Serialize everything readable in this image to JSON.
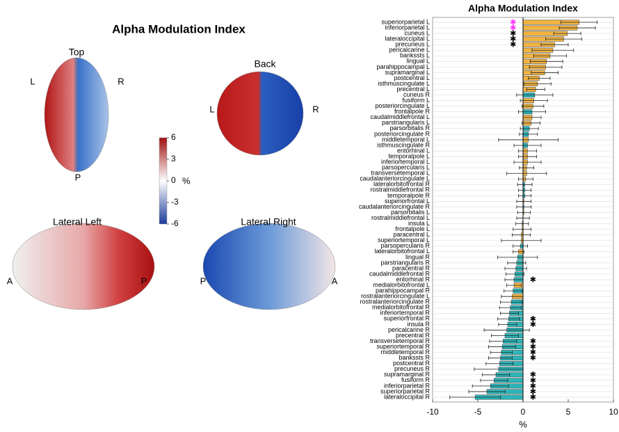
{
  "chart_data": [
    {
      "type": "colorbar",
      "title": "Alpha Modulation Index",
      "label": "%",
      "ylim": [
        -6,
        6
      ],
      "yticks": [
        6,
        3,
        0,
        -3,
        -6
      ],
      "colors": [
        "#1a3a9a",
        "#ffffff",
        "#a01010"
      ],
      "views": [
        {
          "title": "Top",
          "labels": [
            "L",
            "R",
            "P"
          ]
        },
        {
          "title": "Back",
          "labels": [
            "L",
            "R"
          ]
        },
        {
          "title": "Lateral Left",
          "labels": [
            "A",
            "P"
          ]
        },
        {
          "title": "Lateral Right",
          "labels": [
            "P",
            "A"
          ]
        }
      ]
    },
    {
      "type": "hbar",
      "title": "Alpha Modulation Index",
      "xlabel": "%",
      "xlim": [
        -10,
        10
      ],
      "xticks": [
        -10,
        -5,
        0,
        5,
        10
      ],
      "grid": true,
      "categories": [
        "superiorparietal L",
        "inferiorparietal L",
        "cuneus L",
        "lateraloccipital L",
        "precuneus L",
        "pericalcarine L",
        "bankssts L",
        "lingual L",
        "parahippocampal L",
        "supramarginal L",
        "postcentral L",
        "isthmuscingulate L",
        "precentral L",
        "cuneus R",
        "fusiform L",
        "posteriorcingulate L",
        "frontalpole R",
        "caudalmiddlefrontal L",
        "parstriangularis L",
        "parsorbitalis R",
        "posteriorcingulate R",
        "middletemporal L",
        "isthmuscingulate R",
        "entorhinal L",
        "temporalpole L",
        "inferiortemporal L",
        "parsopercularis L",
        "transversetemporal L",
        "caudalanteriorcingulate L",
        "lateralorbitofrontal R",
        "rostralmiddlefrontal R",
        "temporalpole R",
        "superiorfrontal L",
        "caudalanteriorcingulate R",
        "parsorbitalis L",
        "rostralmiddlefrontal L",
        "insula L",
        "frontalpole L",
        "paracentral L",
        "superiortemporal L",
        "parsopercularis R",
        "lateralorbitofrontal L",
        "lingual R",
        "parstriangularis R",
        "paracentral R",
        "caudalmiddlefrontal R",
        "entorhinal R",
        "medialorbitofrontal L",
        "parahippocampal R",
        "rostralanteriorcingulate L",
        "rostralanteriorcingulate R",
        "medialorbitofrontal R",
        "inferiortemporal R",
        "superiorfrontal R",
        "insula R",
        "pericalcarine R",
        "precentral R",
        "transversetemporal R",
        "superiortemporal R",
        "middletemporal R",
        "bankssts R",
        "postcentral R",
        "precuneus R",
        "supramarginal R",
        "fusiform R",
        "inferiorparietal R",
        "superiorparietal R",
        "lateraloccipital R"
      ],
      "values": [
        6.2,
        6.0,
        4.9,
        4.5,
        3.5,
        3.3,
        3.0,
        2.6,
        2.5,
        2.4,
        1.8,
        1.6,
        1.4,
        1.3,
        1.2,
        1.1,
        1.0,
        1.0,
        0.9,
        0.7,
        0.6,
        0.6,
        0.5,
        0.5,
        0.5,
        0.5,
        0.4,
        0.4,
        0.3,
        0.2,
        0.2,
        0.2,
        0.1,
        0.1,
        0.1,
        0.0,
        -0.1,
        -0.1,
        -0.2,
        -0.2,
        -0.3,
        -0.5,
        -0.6,
        -0.7,
        -0.8,
        -0.9,
        -1.0,
        -1.0,
        -1.1,
        -1.2,
        -1.3,
        -1.4,
        -1.5,
        -1.6,
        -1.7,
        -1.8,
        -2.0,
        -2.2,
        -2.3,
        -2.4,
        -2.5,
        -2.6,
        -2.7,
        -3.0,
        -3.2,
        -3.6,
        -4.0,
        -5.3
      ],
      "errors": [
        2.0,
        2.0,
        1.5,
        2.0,
        1.5,
        2.3,
        1.8,
        1.8,
        1.8,
        1.5,
        1.2,
        1.5,
        1.0,
        2.0,
        1.5,
        1.2,
        1.5,
        1.0,
        1.0,
        1.0,
        1.0,
        3.3,
        1.5,
        1.0,
        1.0,
        1.5,
        0.8,
        2.2,
        0.8,
        0.8,
        0.7,
        0.7,
        0.8,
        0.8,
        0.7,
        0.7,
        0.7,
        1.0,
        1.0,
        2.2,
        0.8,
        0.6,
        2.2,
        1.0,
        1.2,
        1.0,
        1.0,
        0.8,
        1.0,
        1.2,
        1.2,
        1.2,
        1.0,
        1.2,
        1.0,
        2.5,
        1.5,
        1.5,
        1.5,
        1.2,
        1.3,
        1.5,
        2.7,
        1.5,
        1.5,
        2.0,
        2.0,
        2.8
      ],
      "bar_colors": [
        "#f2b441",
        "#f2b441",
        "#f2b441",
        "#f2b441",
        "#f2b441",
        "#f2b441",
        "#f2b441",
        "#f2b441",
        "#f2b441",
        "#f2b441",
        "#f2b441",
        "#f2b441",
        "#f2b441",
        "#2bb5b8",
        "#f2b441",
        "#f2b441",
        "#2bb5b8",
        "#f2b441",
        "#f2b441",
        "#2bb5b8",
        "#2bb5b8",
        "#f2b441",
        "#2bb5b8",
        "#f2b441",
        "#f2b441",
        "#f2b441",
        "#f2b441",
        "#f2b441",
        "#f2b441",
        "#2bb5b8",
        "#2bb5b8",
        "#2bb5b8",
        "#f2b441",
        "#2bb5b8",
        "#f2b441",
        "#f2b441",
        "#f2b441",
        "#f2b441",
        "#f2b441",
        "#f2b441",
        "#2bb5b8",
        "#f2b441",
        "#2bb5b8",
        "#2bb5b8",
        "#2bb5b8",
        "#2bb5b8",
        "#2bb5b8",
        "#f2b441",
        "#2bb5b8",
        "#f2b441",
        "#2bb5b8",
        "#2bb5b8",
        "#2bb5b8",
        "#2bb5b8",
        "#2bb5b8",
        "#2bb5b8",
        "#2bb5b8",
        "#2bb5b8",
        "#2bb5b8",
        "#2bb5b8",
        "#2bb5b8",
        "#2bb5b8",
        "#2bb5b8",
        "#2bb5b8",
        "#2bb5b8",
        "#2bb5b8",
        "#2bb5b8",
        "#2bb5b8"
      ],
      "marker": "✱",
      "star_colors": [
        "#ff33ff",
        "#ff33ff",
        "#000000",
        "#000000",
        "#000000",
        null,
        null,
        null,
        null,
        null,
        null,
        null,
        null,
        null,
        null,
        null,
        null,
        null,
        null,
        null,
        null,
        null,
        null,
        null,
        null,
        null,
        null,
        null,
        null,
        null,
        null,
        null,
        null,
        null,
        null,
        null,
        null,
        null,
        null,
        null,
        null,
        null,
        null,
        null,
        null,
        null,
        "#000000",
        null,
        null,
        null,
        null,
        null,
        null,
        "#000000",
        "#000000",
        null,
        null,
        "#000000",
        "#000000",
        "#000000",
        "#000000",
        null,
        null,
        "#000000",
        "#000000",
        "#000000",
        "#000000",
        "#000000"
      ]
    }
  ]
}
